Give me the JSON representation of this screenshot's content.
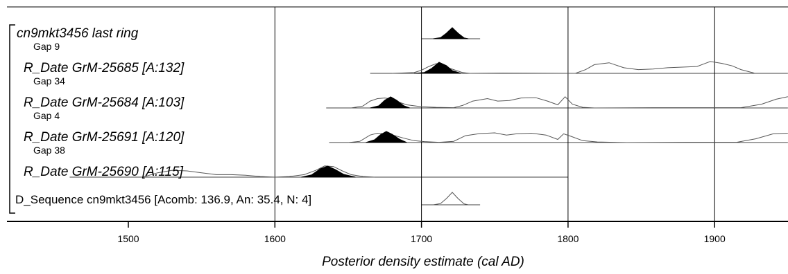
{
  "chart_data": {
    "type": "area",
    "title": "",
    "xlabel": "Posterior density estimate (cal AD)",
    "ylabel": "",
    "xlim": [
      1420,
      1950
    ],
    "grid": true,
    "x_ticks": [
      1500,
      1600,
      1700,
      1800,
      1900
    ],
    "x_tick_labels": [
      "1500",
      "1600",
      "1700",
      "1800",
      "1900"
    ],
    "rows": [
      {
        "name": "cn9mkt3456 last ring",
        "style": "italic",
        "range": [
          1700,
          1740
        ],
        "prior": [],
        "posterior": [
          [
            1708,
            0
          ],
          [
            1713,
            0.1
          ],
          [
            1717,
            0.5
          ],
          [
            1721,
            1
          ],
          [
            1725,
            0.5
          ],
          [
            1729,
            0.08
          ],
          [
            1732,
            0
          ]
        ]
      },
      {
        "name": "Gap 9",
        "style": "gap"
      },
      {
        "name": "R_Date GrM-25685 [A:132]",
        "style": "italic",
        "range": [
          1665,
          1950
        ],
        "prior": [
          [
            1680,
            0
          ],
          [
            1695,
            0.06
          ],
          [
            1700,
            0.25
          ],
          [
            1705,
            0.55
          ],
          [
            1710,
            0.78
          ],
          [
            1714,
            0.72
          ],
          [
            1718,
            0.45
          ],
          [
            1722,
            0.3
          ],
          [
            1728,
            0.06
          ],
          [
            1733,
            0
          ],
          [
            1755,
            0.02
          ],
          [
            1805,
            0
          ],
          [
            1812,
            0.3
          ],
          [
            1818,
            0.7
          ],
          [
            1828,
            0.85
          ],
          [
            1838,
            0.45
          ],
          [
            1848,
            0.3
          ],
          [
            1858,
            0.35
          ],
          [
            1868,
            0.45
          ],
          [
            1878,
            0.5
          ],
          [
            1888,
            0.55
          ],
          [
            1897,
            0.95
          ],
          [
            1905,
            0.8
          ],
          [
            1912,
            0.6
          ],
          [
            1918,
            0.3
          ],
          [
            1927,
            0.02
          ]
        ],
        "posterior": [
          [
            1695,
            0
          ],
          [
            1702,
            0.08
          ],
          [
            1707,
            0.45
          ],
          [
            1712,
            1
          ],
          [
            1717,
            0.7
          ],
          [
            1721,
            0.25
          ],
          [
            1727,
            0
          ]
        ]
      },
      {
        "name": "Gap 34",
        "style": "gap"
      },
      {
        "name": "R_Date GrM-25684 [A:103]",
        "style": "italic",
        "range": [
          1635,
          1950
        ],
        "prior": [
          [
            1652,
            0
          ],
          [
            1660,
            0.15
          ],
          [
            1665,
            0.55
          ],
          [
            1670,
            0.75
          ],
          [
            1675,
            0.8
          ],
          [
            1680,
            0.7
          ],
          [
            1685,
            0.45
          ],
          [
            1690,
            0.25
          ],
          [
            1700,
            0.1
          ],
          [
            1710,
            0.05
          ],
          [
            1722,
            0.02
          ],
          [
            1728,
            0.2
          ],
          [
            1735,
            0.55
          ],
          [
            1745,
            0.75
          ],
          [
            1752,
            0.55
          ],
          [
            1760,
            0.6
          ],
          [
            1768,
            0.8
          ],
          [
            1778,
            0.82
          ],
          [
            1786,
            0.55
          ],
          [
            1793,
            0.25
          ],
          [
            1798,
            0.9
          ],
          [
            1803,
            0.3
          ],
          [
            1810,
            0.05
          ],
          [
            1818,
            0
          ],
          [
            1858,
            0.02
          ],
          [
            1918,
            0.02
          ],
          [
            1932,
            0.3
          ],
          [
            1942,
            0.7
          ],
          [
            1950,
            0.9
          ]
        ],
        "posterior": [
          [
            1665,
            0
          ],
          [
            1671,
            0.2
          ],
          [
            1675,
            0.7
          ],
          [
            1679,
            1
          ],
          [
            1683,
            0.7
          ],
          [
            1688,
            0.2
          ],
          [
            1692,
            0
          ]
        ]
      },
      {
        "name": "Gap 4",
        "style": "gap"
      },
      {
        "name": "R_Date GrM-25691 [A:120]",
        "style": "italic",
        "range": [
          1637,
          1950
        ],
        "prior": [
          [
            1650,
            0
          ],
          [
            1658,
            0.1
          ],
          [
            1665,
            0.6
          ],
          [
            1670,
            0.75
          ],
          [
            1676,
            0.7
          ],
          [
            1682,
            0.55
          ],
          [
            1688,
            0.35
          ],
          [
            1695,
            0.15
          ],
          [
            1702,
            0.08
          ],
          [
            1712,
            0.02
          ],
          [
            1722,
            0.1
          ],
          [
            1730,
            0.55
          ],
          [
            1740,
            0.72
          ],
          [
            1750,
            0.78
          ],
          [
            1758,
            0.6
          ],
          [
            1765,
            0.7
          ],
          [
            1775,
            0.75
          ],
          [
            1785,
            0.6
          ],
          [
            1793,
            0.25
          ],
          [
            1797,
            0.7
          ],
          [
            1802,
            0.5
          ],
          [
            1810,
            0.15
          ],
          [
            1820,
            0.05
          ],
          [
            1840,
            0
          ],
          [
            1880,
            0.02
          ],
          [
            1915,
            0.02
          ],
          [
            1928,
            0.3
          ],
          [
            1940,
            0.7
          ],
          [
            1950,
            0.75
          ]
        ],
        "posterior": [
          [
            1662,
            0
          ],
          [
            1668,
            0.25
          ],
          [
            1672,
            0.7
          ],
          [
            1676,
            1
          ],
          [
            1680,
            0.75
          ],
          [
            1685,
            0.3
          ],
          [
            1690,
            0
          ]
        ]
      },
      {
        "name": "Gap 38",
        "style": "gap"
      },
      {
        "name": "R_Date GrM-25690 [A:115]",
        "style": "italic",
        "range": [
          1460,
          1800
        ],
        "prior": [
          [
            1510,
            0
          ],
          [
            1520,
            0.35
          ],
          [
            1530,
            0.55
          ],
          [
            1540,
            0.5
          ],
          [
            1550,
            0.35
          ],
          [
            1560,
            0.2
          ],
          [
            1570,
            0.2
          ],
          [
            1580,
            0.15
          ],
          [
            1590,
            0.05
          ],
          [
            1600,
            0
          ],
          [
            1610,
            0.05
          ],
          [
            1620,
            0.2
          ],
          [
            1628,
            0.55
          ],
          [
            1634,
            0.9
          ],
          [
            1640,
            0.85
          ],
          [
            1646,
            0.5
          ],
          [
            1652,
            0.2
          ],
          [
            1660,
            0.05
          ],
          [
            1668,
            0
          ]
        ],
        "posterior": [
          [
            1618,
            0
          ],
          [
            1625,
            0.2
          ],
          [
            1631,
            0.75
          ],
          [
            1636,
            1
          ],
          [
            1641,
            0.7
          ],
          [
            1647,
            0.25
          ],
          [
            1655,
            0
          ]
        ]
      },
      {
        "name": "D_Sequence cn9mkt3456 [Acomb: 136.9, An: 35.4, N: 4]",
        "style": "plain",
        "range": [
          1700,
          1740
        ],
        "prior": [
          [
            1708,
            0
          ],
          [
            1713,
            0.1
          ],
          [
            1717,
            0.5
          ],
          [
            1721,
            1
          ],
          [
            1725,
            0.5
          ],
          [
            1729,
            0.08
          ],
          [
            1732,
            0
          ]
        ],
        "posterior": []
      }
    ]
  }
}
